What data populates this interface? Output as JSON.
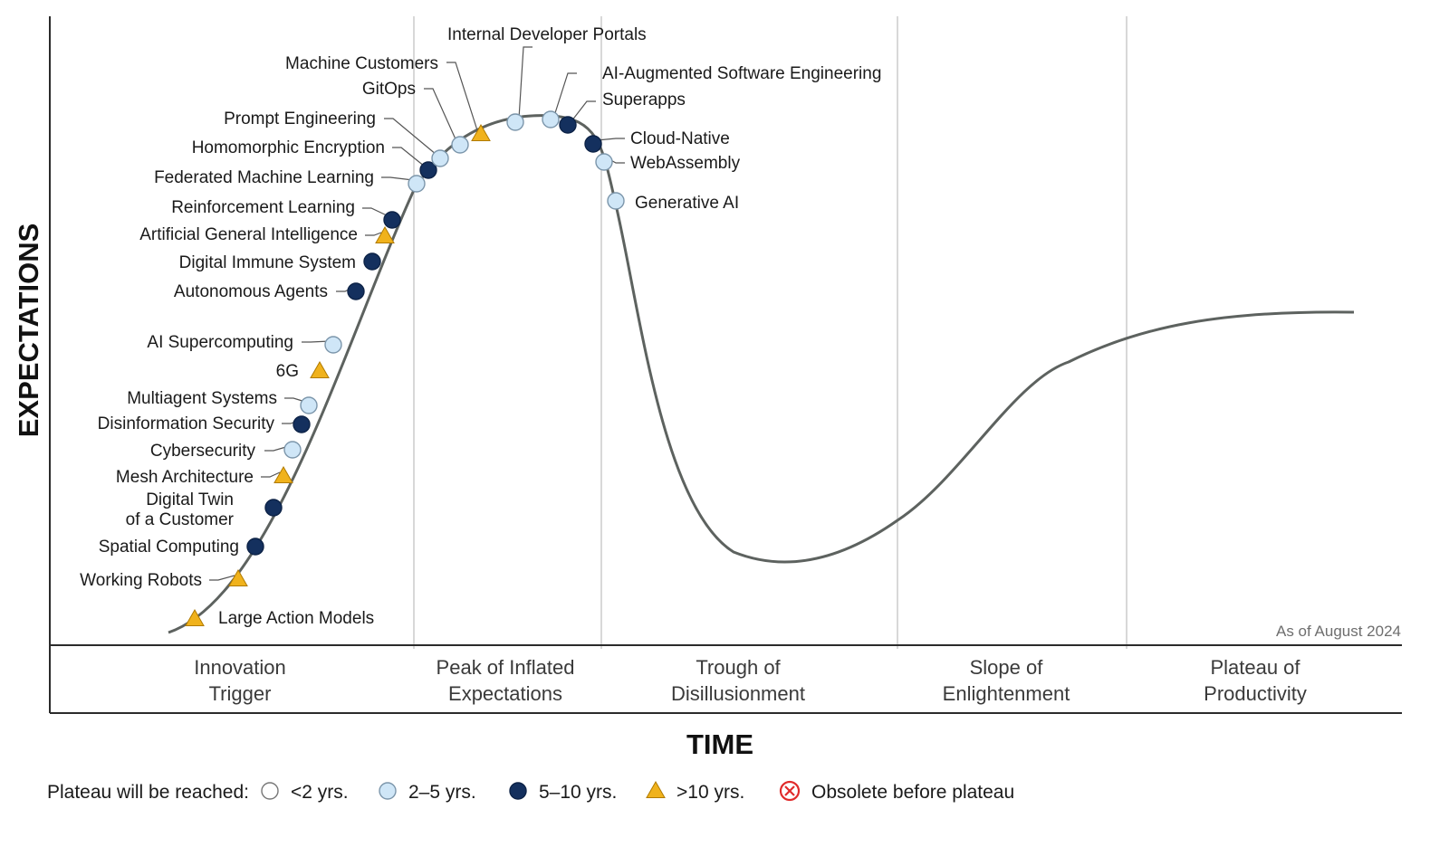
{
  "chart_data": {
    "type": "line",
    "title": "",
    "xlabel": "TIME",
    "ylabel": "EXPECTATIONS",
    "as_of": "As of August 2024",
    "grid": false,
    "phases": [
      {
        "lines": [
          "Innovation",
          "Trigger"
        ]
      },
      {
        "lines": [
          "Peak of Inflated",
          "Expectations"
        ]
      },
      {
        "lines": [
          "Trough of",
          "Disillusionment"
        ]
      },
      {
        "lines": [
          "Slope of",
          "Enlightenment"
        ]
      },
      {
        "lines": [
          "Plateau of",
          "Productivity"
        ]
      }
    ],
    "legend": {
      "title": "Plateau will be reached:",
      "placement": "bottom",
      "items": [
        {
          "key": "lt2",
          "label": "<2 yrs."
        },
        {
          "key": "2to5",
          "label": "2–5 yrs."
        },
        {
          "key": "5to10",
          "label": "5–10 yrs."
        },
        {
          "key": "gt10",
          "label": ">10 yrs."
        },
        {
          "key": "obsolete",
          "label": "Obsolete before plateau"
        }
      ]
    },
    "colors": {
      "curve": "#5d625f",
      "lt2": "#ffffff",
      "2to5": "#cfe6f7",
      "5to10": "#14305e",
      "gt10": "#f0b21c",
      "obsolete": "#e02b2b",
      "divider": "#cccccc",
      "axis": "#2b2b2b"
    },
    "points": [
      {
        "name": "Large Action Models",
        "category": "gt10"
      },
      {
        "name": "Working Robots",
        "category": "gt10"
      },
      {
        "name": "Spatial Computing",
        "category": "5to10"
      },
      {
        "name": "Digital Twin of a Customer",
        "lines": [
          "Digital Twin",
          "of a Customer"
        ],
        "category": "5to10"
      },
      {
        "name": "Mesh Architecture",
        "category": "gt10"
      },
      {
        "name": "Cybersecurity",
        "category": "2to5"
      },
      {
        "name": "Disinformation Security",
        "category": "5to10"
      },
      {
        "name": "Multiagent Systems",
        "category": "2to5"
      },
      {
        "name": "6G",
        "category": "gt10"
      },
      {
        "name": "AI Supercomputing",
        "category": "2to5"
      },
      {
        "name": "Autonomous Agents",
        "category": "5to10"
      },
      {
        "name": "Digital Immune System",
        "category": "5to10"
      },
      {
        "name": "Artificial General Intelligence",
        "category": "gt10"
      },
      {
        "name": "Reinforcement Learning",
        "category": "5to10"
      },
      {
        "name": "Federated Machine Learning",
        "category": "2to5"
      },
      {
        "name": "Homomorphic Encryption",
        "category": "5to10"
      },
      {
        "name": "Prompt Engineering",
        "category": "2to5"
      },
      {
        "name": "GitOps",
        "category": "2to5"
      },
      {
        "name": "Machine Customers",
        "category": "gt10"
      },
      {
        "name": "Internal Developer Portals",
        "category": "2to5"
      },
      {
        "name": "AI-Augmented Software Engineering",
        "category": "2to5"
      },
      {
        "name": "Superapps",
        "category": "5to10"
      },
      {
        "name": "Cloud-Native",
        "category": "5to10"
      },
      {
        "name": "WebAssembly",
        "category": "2to5"
      },
      {
        "name": "Generative AI",
        "category": "2to5"
      }
    ]
  }
}
